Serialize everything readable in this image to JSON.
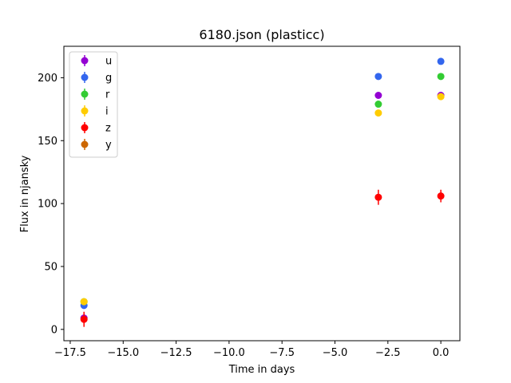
{
  "chart_data": {
    "type": "scatter",
    "title": "6180.json (plasticc)",
    "xlabel": "Time in days",
    "ylabel": "Flux in njansky",
    "xlim": [
      -17.8,
      0.9
    ],
    "ylim": [
      -9,
      225
    ],
    "xticks": [
      -17.5,
      -15.0,
      -12.5,
      -10.0,
      -7.5,
      -5.0,
      -2.5,
      0.0
    ],
    "xtick_labels": [
      "−17.5",
      "−15.0",
      "−12.5",
      "−10.0",
      "−7.5",
      "−5.0",
      "−2.5",
      "0.0"
    ],
    "yticks": [
      0,
      50,
      100,
      150,
      200
    ],
    "ytick_labels": [
      "0",
      "50",
      "100",
      "150",
      "200"
    ],
    "grid": false,
    "legend_position": "top-left",
    "series": [
      {
        "name": "u",
        "color": "#9400d3",
        "points": [
          {
            "x": -16.85,
            "y": 9,
            "err": 3
          },
          {
            "x": -2.95,
            "y": 186,
            "err": 2
          },
          {
            "x": 0.0,
            "y": 186,
            "err": 2
          }
        ]
      },
      {
        "name": "g",
        "color": "#3366ee",
        "points": [
          {
            "x": -16.85,
            "y": 19,
            "err": 2
          },
          {
            "x": -2.95,
            "y": 201,
            "err": 1
          },
          {
            "x": 0.0,
            "y": 213,
            "err": 1
          }
        ]
      },
      {
        "name": "r",
        "color": "#33cc33",
        "points": [
          {
            "x": -16.85,
            "y": 22,
            "err": 1
          },
          {
            "x": -2.95,
            "y": 179,
            "err": 1
          },
          {
            "x": 0.0,
            "y": 201,
            "err": 1
          }
        ]
      },
      {
        "name": "i",
        "color": "#ffcc00",
        "points": [
          {
            "x": -16.85,
            "y": 22,
            "err": 1
          },
          {
            "x": -2.95,
            "y": 172,
            "err": 1
          },
          {
            "x": 0.0,
            "y": 185,
            "err": 1
          }
        ]
      },
      {
        "name": "z",
        "color": "#ff0000",
        "points": [
          {
            "x": -16.85,
            "y": 8,
            "err": 6
          },
          {
            "x": -2.95,
            "y": 105,
            "err": 6
          },
          {
            "x": 0.0,
            "y": 106,
            "err": 5
          }
        ]
      },
      {
        "name": "y",
        "color": "#cc6600",
        "points": []
      }
    ]
  }
}
